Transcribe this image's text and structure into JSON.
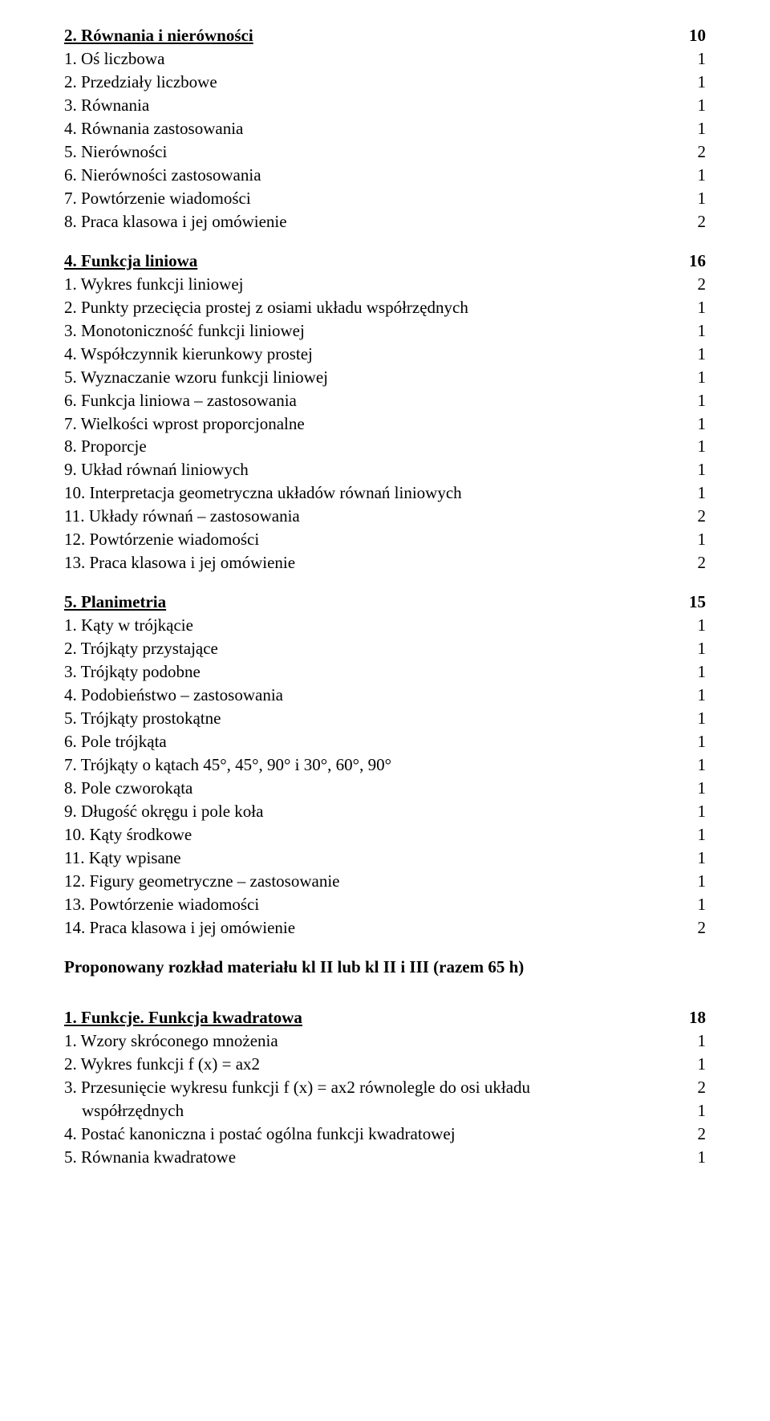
{
  "sections": [
    {
      "heading": {
        "label": "2. Równania i nierówności",
        "underline": true,
        "value": "10"
      },
      "items": [
        {
          "label": "1. Oś liczbowa",
          "value": "1"
        },
        {
          "label": "2. Przedziały liczbowe",
          "value": "1"
        },
        {
          "label": "3. Równania",
          "value": "1"
        },
        {
          "label": "4. Równania zastosowania",
          "value": "1"
        },
        {
          "label": "5. Nierówności",
          "value": "2"
        },
        {
          "label": "6. Nierówności zastosowania",
          "value": "1"
        },
        {
          "label": "7. Powtórzenie wiadomości",
          "value": "1"
        },
        {
          "label": "8. Praca klasowa i jej omówienie",
          "value": "2"
        }
      ]
    },
    {
      "heading": {
        "label": "4. Funkcja liniowa",
        "underline": true,
        "value": "16"
      },
      "items": [
        {
          "label": "1. Wykres funkcji liniowej",
          "value": "2"
        },
        {
          "label": "2. Punkty przecięcia prostej z osiami układu współrzędnych",
          "value": "1"
        },
        {
          "label": "3. Monotoniczność funkcji liniowej",
          "value": "1"
        },
        {
          "label": "4. Współczynnik kierunkowy prostej",
          "value": "1"
        },
        {
          "label": "5. Wyznaczanie wzoru funkcji liniowej",
          "value": "1"
        },
        {
          "label": "6. Funkcja liniowa – zastosowania",
          "value": "1"
        },
        {
          "label": "7. Wielkości wprost proporcjonalne",
          "value": "1"
        },
        {
          "label": "8. Proporcje",
          "value": "1"
        },
        {
          "label": "9. Układ równań liniowych",
          "value": "1"
        },
        {
          "label": "10. Interpretacja geometryczna układów równań liniowych",
          "value": "1"
        },
        {
          "label": "11. Układy równań – zastosowania",
          "value": "2"
        },
        {
          "label": "12. Powtórzenie wiadomości",
          "value": "1"
        },
        {
          "label": "13. Praca klasowa i jej omówienie",
          "value": "2"
        }
      ]
    },
    {
      "heading": {
        "label": "5. Planimetria",
        "underline": true,
        "value": "15"
      },
      "items": [
        {
          "label": "1. Kąty w trójkącie",
          "value": "1"
        },
        {
          "label": "2. Trójkąty przystające",
          "value": "1"
        },
        {
          "label": "3. Trójkąty podobne",
          "value": "1"
        },
        {
          "label": "4. Podobieństwo – zastosowania",
          "value": "1"
        },
        {
          "label": "5. Trójkąty prostokątne",
          "value": "1"
        },
        {
          "label": "6. Pole trójkąta",
          "value": "1"
        },
        {
          "label": "7. Trójkąty o kątach 45°, 45°, 90° i 30°, 60°, 90°",
          "value": "1"
        },
        {
          "label": "8. Pole czworokąta",
          "value": "1"
        },
        {
          "label": "9. Długość okręgu i pole koła",
          "value": "1"
        },
        {
          "label": "10. Kąty środkowe",
          "value": "1"
        },
        {
          "label": "11. Kąty wpisane",
          "value": "1"
        },
        {
          "label": "12. Figury geometryczne – zastosowanie",
          "value": "1"
        },
        {
          "label": "13. Powtórzenie wiadomości",
          "value": "1"
        },
        {
          "label": "14. Praca klasowa i jej omówienie",
          "value": "2"
        }
      ]
    }
  ],
  "intertitle": "Proponowany rozkład materiału kl II lub kl II i III (razem 65 h)",
  "section_after": {
    "heading": {
      "label": "1. Funkcje. Funkcja kwadratowa",
      "underline": true,
      "value": "18"
    },
    "items": [
      {
        "label": "1. Wzory skróconego mnożenia",
        "value": "1"
      },
      {
        "label": "2. Wykres funkcji f (x) = ax2",
        "value": "1"
      },
      {
        "label": "3. Przesunięcie wykresu funkcji f (x) = ax2 równolegle do osi układu",
        "value": "2"
      },
      {
        "label": "współrzędnych",
        "value": "1",
        "indent": true
      },
      {
        "label": "4. Postać kanoniczna i postać ogólna funkcji kwadratowej",
        "value": "2"
      },
      {
        "label": "5. Równania kwadratowe",
        "value": "1"
      }
    ]
  }
}
